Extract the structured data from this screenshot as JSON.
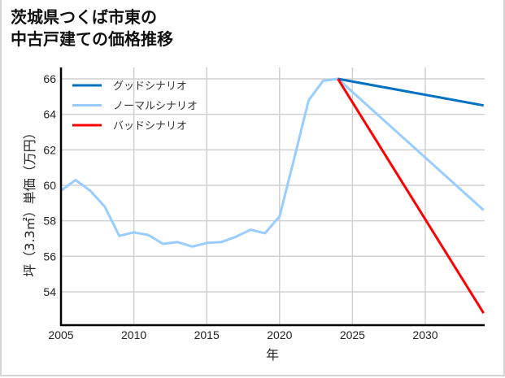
{
  "title": {
    "line1": "茨城県つくば市東の",
    "line2": "中古戸建ての価格推移"
  },
  "axes": {
    "xlabel": "年",
    "ylabel": "坪（3.3㎡）単価（万円）",
    "x_ticks": [
      "2005",
      "2010",
      "2015",
      "2020",
      "2025",
      "2030"
    ],
    "y_ticks": [
      "54",
      "56",
      "58",
      "60",
      "62",
      "64",
      "66"
    ]
  },
  "legend": [
    {
      "label": "グッドシナリオ",
      "color": "#0070c0"
    },
    {
      "label": "ノーマルシナリオ",
      "color": "#99ccff"
    },
    {
      "label": "バッドシナリオ",
      "color": "#ff0000"
    }
  ],
  "chart_data": {
    "type": "line",
    "title": "茨城県つくば市東の中古戸建ての価格推移",
    "xlabel": "年",
    "ylabel": "坪（3.3㎡）単価（万円）",
    "xlim": [
      2005,
      2034
    ],
    "ylim": [
      52.1,
      66.6
    ],
    "grid": true,
    "legend_position": "upper left",
    "series": [
      {
        "name": "ノーマルシナリオ",
        "color": "#99ccff",
        "x": [
          2005,
          2006,
          2007,
          2008,
          2009,
          2010,
          2011,
          2012,
          2013,
          2014,
          2015,
          2016,
          2017,
          2018,
          2019,
          2020,
          2021,
          2022,
          2023,
          2024,
          2034
        ],
        "values": [
          59.7,
          60.3,
          59.7,
          58.8,
          57.15,
          57.35,
          57.2,
          56.7,
          56.8,
          56.55,
          56.75,
          56.8,
          57.1,
          57.5,
          57.3,
          58.25,
          61.5,
          64.8,
          65.9,
          66.0,
          58.6
        ]
      },
      {
        "name": "グッドシナリオ",
        "color": "#0070c0",
        "x": [
          2024,
          2034
        ],
        "values": [
          66.0,
          64.5
        ]
      },
      {
        "name": "バッドシナリオ",
        "color": "#ff0000",
        "x": [
          2024,
          2034
        ],
        "values": [
          66.0,
          52.8
        ]
      }
    ]
  }
}
